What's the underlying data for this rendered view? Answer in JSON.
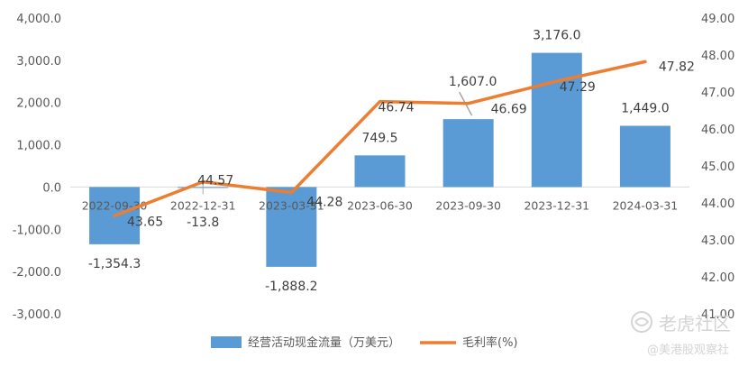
{
  "chart_data": {
    "type": "bar",
    "categories": [
      "2022-09-30",
      "2022-12-31",
      "2023-03-31",
      "2023-06-30",
      "2023-09-30",
      "2023-12-31",
      "2024-03-31"
    ],
    "series": [
      {
        "name": "经营活动现金流量（万美元）",
        "type": "bar",
        "axis": "left",
        "color": "#5b9bd5",
        "values": [
          -1354.3,
          -13.8,
          -1888.2,
          749.5,
          1607.0,
          3176.0,
          1449.0
        ],
        "labels": [
          "-1,354.3",
          "-13.8",
          "-1,888.2",
          "749.5",
          "1,607.0",
          "3,176.0",
          "1,449.0"
        ]
      },
      {
        "name": "毛利率(%)",
        "type": "line",
        "axis": "right",
        "color": "#ed7d31",
        "values": [
          43.65,
          44.57,
          44.28,
          46.74,
          46.69,
          47.29,
          47.82
        ],
        "labels": [
          "43.65",
          "44.57",
          "44.28",
          "46.74",
          "46.69",
          "47.29",
          "47.82"
        ]
      }
    ],
    "y_left": {
      "range": [
        -3000,
        4000
      ],
      "ticks": [
        4000,
        3000,
        2000,
        1000,
        0,
        -1000,
        -2000,
        -3000
      ],
      "tick_labels": [
        "4,000.0",
        "3,000.0",
        "2,000.0",
        "1,000.0",
        "0.0",
        "-1,000.0",
        "-2,000.0",
        "-3,000.0"
      ]
    },
    "y_right": {
      "range": [
        41,
        49
      ],
      "ticks": [
        49,
        48,
        47,
        46,
        45,
        44,
        43,
        42,
        41
      ],
      "tick_labels": [
        "49.00",
        "48.00",
        "47.00",
        "46.00",
        "45.00",
        "44.00",
        "43.00",
        "42.00",
        "41.00"
      ]
    },
    "grid": false,
    "legend_position": "bottom"
  },
  "watermark": {
    "main_text": "老虎社区",
    "sub_text": "@美港股观察社"
  }
}
